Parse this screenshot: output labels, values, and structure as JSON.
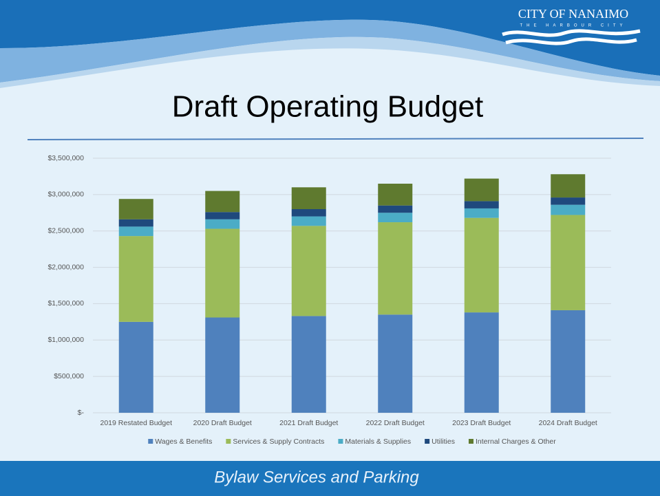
{
  "logo": {
    "name": "CITY OF NANAIMO",
    "tagline": "THE HARBOUR CITY"
  },
  "footer": "Bylaw Services and Parking",
  "chart_data": {
    "type": "stacked-bar",
    "title": "Draft Operating Budget",
    "categories": [
      "2019 Restated Budget",
      "2020 Draft Budget",
      "2021 Draft Budget",
      "2022 Draft Budget",
      "2023 Draft Budget",
      "2024 Draft Budget"
    ],
    "series": [
      {
        "name": "Wages & Benefits",
        "color": "#4f81bd",
        "values": [
          1250000,
          1310000,
          1330000,
          1350000,
          1380000,
          1410000
        ]
      },
      {
        "name": "Services & Supply Contracts",
        "color": "#9bbb59",
        "values": [
          1180000,
          1220000,
          1240000,
          1270000,
          1300000,
          1310000
        ]
      },
      {
        "name": "Materials & Supplies",
        "color": "#4bacc6",
        "values": [
          130000,
          130000,
          130000,
          130000,
          130000,
          140000
        ]
      },
      {
        "name": "Utilities",
        "color": "#1f497d",
        "values": [
          100000,
          100000,
          100000,
          100000,
          100000,
          100000
        ]
      },
      {
        "name": "Internal Charges & Other",
        "color": "#5f7a2f",
        "values": [
          280000,
          290000,
          300000,
          300000,
          310000,
          320000
        ]
      }
    ],
    "ylim": [
      0,
      3500000
    ],
    "yticks": [
      {
        "value": 0,
        "label": "$-"
      },
      {
        "value": 500000,
        "label": "$500,000"
      },
      {
        "value": 1000000,
        "label": "$1,000,000"
      },
      {
        "value": 1500000,
        "label": "$1,500,000"
      },
      {
        "value": 2000000,
        "label": "$2,000,000"
      },
      {
        "value": 2500000,
        "label": "$2,500,000"
      },
      {
        "value": 3000000,
        "label": "$3,000,000"
      },
      {
        "value": 3500000,
        "label": "$3,500,000"
      }
    ],
    "grid": true,
    "legend": "bottom"
  }
}
